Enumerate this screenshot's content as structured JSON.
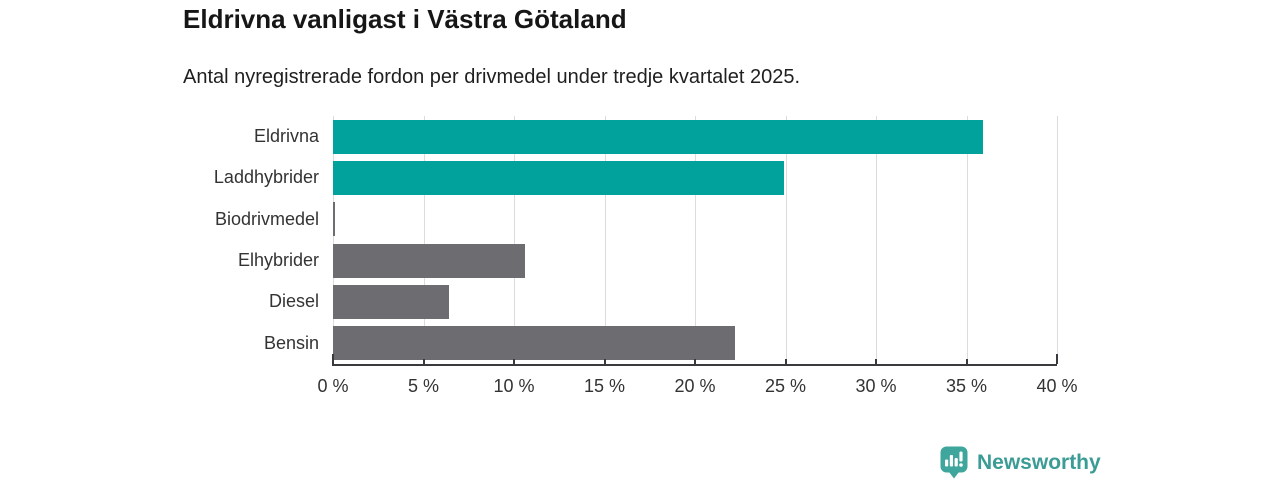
{
  "header": {
    "title": "Eldrivna vanligast i Västra Götaland",
    "subtitle": "Antal nyregistrerade fordon per drivmedel under tredje kvartalet 2025."
  },
  "chart_data": {
    "type": "bar",
    "orientation": "horizontal",
    "title": "Eldrivna vanligast i Västra Götaland",
    "subtitle": "Antal nyregistrerade fordon per drivmedel under tredje kvartalet 2025.",
    "categories": [
      "Eldrivna",
      "Laddhybrider",
      "Biodrivmedel",
      "Elhybrider",
      "Diesel",
      "Bensin"
    ],
    "values": [
      35.9,
      24.9,
      0.1,
      10.6,
      6.4,
      22.2
    ],
    "unit": "%",
    "xlim": [
      0,
      40
    ],
    "x_ticks": [
      0,
      5,
      10,
      15,
      20,
      25,
      30,
      35,
      40
    ],
    "x_tick_labels": [
      "0 %",
      "5 %",
      "10 %",
      "15 %",
      "20 %",
      "25 %",
      "30 %",
      "35 %",
      "40 %"
    ],
    "bar_colors": [
      "#00a29b",
      "#00a29b",
      "#6d6d71",
      "#6d6d71",
      "#6d6d71",
      "#6d6d71"
    ],
    "grid": true,
    "legend": "none",
    "xlabel": "",
    "ylabel": ""
  },
  "colors": {
    "accent_teal": "#00a29b",
    "bar_gray": "#6d6d71",
    "gridline": "#dcdcdc",
    "axis": "#3a3a3e",
    "text_dark": "#161616",
    "text_axis": "#333333",
    "brand_teal": "#3b9c96"
  },
  "footer": {
    "brand": "Newsworthy",
    "logo_icon": "bar-chart-badge-icon"
  }
}
